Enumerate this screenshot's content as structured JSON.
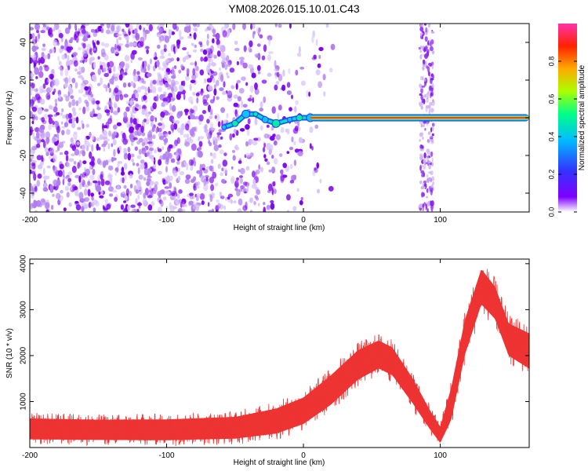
{
  "title": "YM08.2026.015.10.01.C43",
  "chart_data": [
    {
      "type": "heatmap",
      "name": "spectrogram",
      "xlabel": "Height of straight line (km)",
      "ylabel": "Frequency (Hz)",
      "xlim": [
        -200,
        165
      ],
      "ylim": [
        -50,
        50
      ],
      "xticks": [
        -200,
        -100,
        0,
        100
      ],
      "yticks": [
        -40,
        -20,
        0,
        20,
        40
      ],
      "colorbar": {
        "label": "Normalized spectral amplitude",
        "range": [
          0,
          1
        ],
        "ticks": [
          "0.0",
          "0.2",
          "0.4",
          "0.6",
          "0.8"
        ],
        "tick_values": [
          0.0,
          0.2,
          0.4,
          0.6,
          0.8
        ],
        "colormap": [
          "#ffffff",
          "#7f00ff",
          "#3333ff",
          "#00bbff",
          "#00ff88",
          "#aaff00",
          "#ffaa00",
          "#ff2200",
          "#ff33aa"
        ]
      },
      "features": {
        "scatter_noise_x_range": [
          -200,
          5
        ],
        "spectral_line_frequency_hz": 0,
        "spectral_line_x_range": [
          5,
          165
        ],
        "vertical_stripe_x_km": 90,
        "ramp_points": [
          {
            "x": -58,
            "y": -5
          },
          {
            "x": -50,
            "y": -3
          },
          {
            "x": -42,
            "y": 2
          },
          {
            "x": -35,
            "y": 2
          },
          {
            "x": -28,
            "y": -1
          },
          {
            "x": -20,
            "y": -3
          },
          {
            "x": -10,
            "y": -1
          },
          {
            "x": -3,
            "y": 0
          },
          {
            "x": 5,
            "y": 0
          }
        ]
      }
    },
    {
      "type": "line",
      "name": "snr",
      "xlabel": "Height of straight line (km)",
      "ylabel": "SNR (10 * v/v)",
      "xlim": [
        -200,
        165
      ],
      "ylim": [
        0,
        4100
      ],
      "xticks": [
        -200,
        -100,
        0,
        100
      ],
      "yticks": [
        1000,
        2000,
        3000,
        4000
      ],
      "color": "#ee3333",
      "envelope": [
        {
          "x": -200,
          "lo": 50,
          "hi": 760
        },
        {
          "x": -150,
          "lo": 40,
          "hi": 730
        },
        {
          "x": -100,
          "lo": 30,
          "hi": 740
        },
        {
          "x": -50,
          "lo": 60,
          "hi": 800
        },
        {
          "x": -20,
          "lo": 150,
          "hi": 1000
        },
        {
          "x": 0,
          "lo": 350,
          "hi": 1250
        },
        {
          "x": 20,
          "lo": 750,
          "hi": 1750
        },
        {
          "x": 40,
          "lo": 1300,
          "hi": 2300
        },
        {
          "x": 55,
          "lo": 1550,
          "hi": 2500
        },
        {
          "x": 65,
          "lo": 1400,
          "hi": 2350
        },
        {
          "x": 80,
          "lo": 800,
          "hi": 1650
        },
        {
          "x": 92,
          "lo": 300,
          "hi": 950
        },
        {
          "x": 100,
          "lo": 0,
          "hi": 550
        },
        {
          "x": 108,
          "lo": 400,
          "hi": 1500
        },
        {
          "x": 118,
          "lo": 1800,
          "hi": 3000
        },
        {
          "x": 130,
          "lo": 2900,
          "hi": 4100
        },
        {
          "x": 140,
          "lo": 2600,
          "hi": 3700
        },
        {
          "x": 150,
          "lo": 1800,
          "hi": 2900
        },
        {
          "x": 165,
          "lo": 1500,
          "hi": 2700
        }
      ]
    }
  ]
}
